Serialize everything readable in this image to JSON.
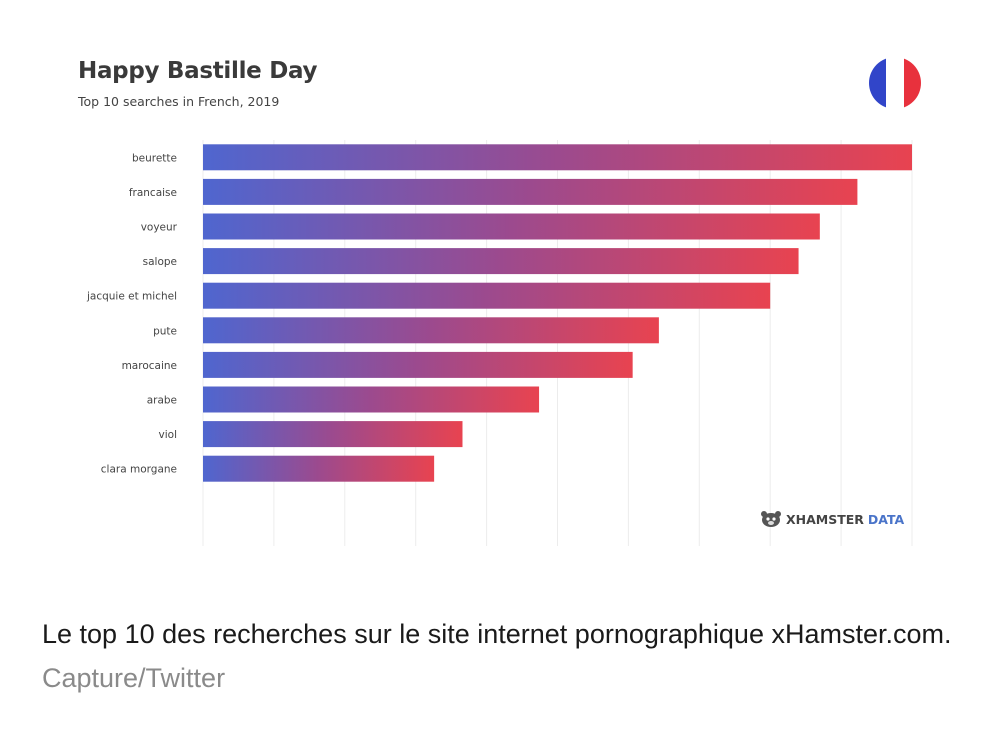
{
  "chart_data": {
    "type": "bar",
    "orientation": "horizontal",
    "title": "Happy Bastille Day",
    "subtitle": "Top 10 searches in French, 2019",
    "categories": [
      "beurette",
      "francaise",
      "voyeur",
      "salope",
      "jacquie et michel",
      "pute",
      "marocaine",
      "arabe",
      "viol",
      "clara morgane"
    ],
    "values": [
      100,
      92.3,
      87,
      84,
      80,
      64.3,
      60.6,
      47.4,
      36.6,
      32.6
    ],
    "xlim": [
      0,
      100
    ],
    "grid": true,
    "gradient": {
      "start": "#4f66cf",
      "mid": "#9c4a8e",
      "end": "#e84350"
    }
  },
  "flag": {
    "colors": [
      "#3145c9",
      "#ffffff",
      "#e8313d"
    ],
    "icon": "france-flag-icon"
  },
  "brand": {
    "name_a": "XHAMSTER",
    "name_b": "DATA",
    "icon": "hamster-icon"
  },
  "caption": {
    "text": "Le top 10 des recherches sur le site internet pornographique xHamster.com.",
    "credit": "Capture/Twitter"
  }
}
